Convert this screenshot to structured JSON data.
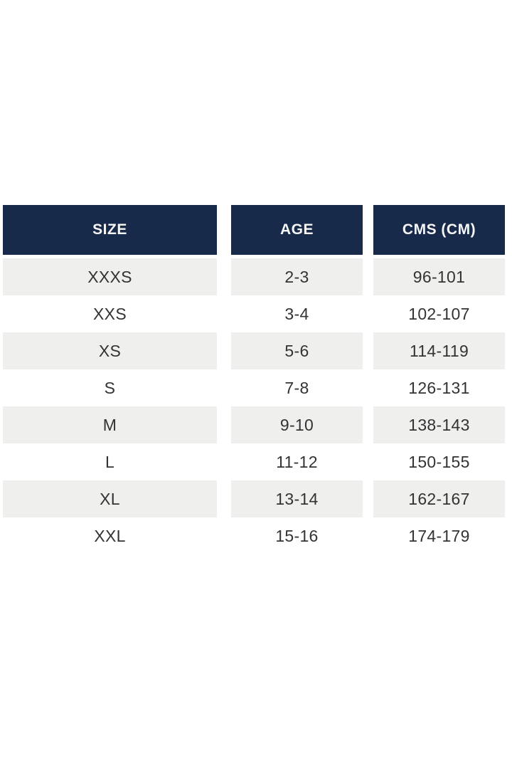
{
  "table": {
    "columns": [
      {
        "key": "size",
        "label": "SIZE"
      },
      {
        "key": "age",
        "label": "AGE"
      },
      {
        "key": "cms",
        "label": "CMS (CM)"
      }
    ],
    "rows": [
      {
        "size": "XXXS",
        "age": "2-3",
        "cms": "96-101"
      },
      {
        "size": "XXS",
        "age": "3-4",
        "cms": "102-107"
      },
      {
        "size": "XS",
        "age": "5-6",
        "cms": "114-119"
      },
      {
        "size": "S",
        "age": "7-8",
        "cms": "126-131"
      },
      {
        "size": "M",
        "age": "9-10",
        "cms": "138-143"
      },
      {
        "size": "L",
        "age": "11-12",
        "cms": "150-155"
      },
      {
        "size": "XL",
        "age": "13-14",
        "cms": "162-167"
      },
      {
        "size": "XXL",
        "age": "15-16",
        "cms": "174-179"
      }
    ],
    "colors": {
      "header_bg": "#182a4a",
      "header_text": "#f6f6f6",
      "row_alt_bg": "#efefee",
      "row_bg": "#ffffff",
      "cell_text": "#333333",
      "page_bg": "#ffffff"
    }
  }
}
